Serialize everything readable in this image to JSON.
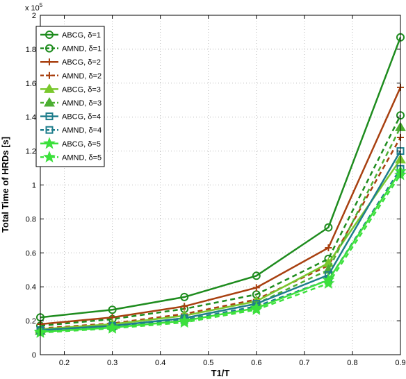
{
  "chart_data": {
    "type": "line",
    "xlabel": "T1/T",
    "ylabel": "Total Time of HRDs [s]",
    "y_multiplier": "x 10",
    "y_multiplier_exponent": "5",
    "xlim": [
      0.15,
      0.9
    ],
    "ylim": [
      0,
      2
    ],
    "x_ticks": [
      "0.2",
      "0.3",
      "0.4",
      "0.5",
      "0.6",
      "0.7",
      "0.8",
      "0.9"
    ],
    "y_ticks": [
      "0",
      "0.2",
      "0.4",
      "0.6",
      "0.8",
      "1",
      "1.2",
      "1.4",
      "1.6",
      "1.8",
      "2"
    ],
    "grid": true,
    "legend_position": "top-left",
    "x": [
      0.15,
      0.3,
      0.45,
      0.6,
      0.75,
      0.9
    ],
    "series": [
      {
        "name": "ABCG, δ=1",
        "values": [
          0.22,
          0.265,
          0.34,
          0.465,
          0.75,
          1.87
        ],
        "color": "#1e8c1e",
        "dash": "solid",
        "marker": "circle"
      },
      {
        "name": "AMND, δ=1",
        "values": [
          0.17,
          0.21,
          0.27,
          0.355,
          0.565,
          1.41
        ],
        "color": "#1e8c1e",
        "dash": "dashed",
        "marker": "circle"
      },
      {
        "name": "ABCG, δ=2",
        "values": [
          0.18,
          0.22,
          0.285,
          0.395,
          0.63,
          1.575
        ],
        "color": "#a84010",
        "dash": "solid",
        "marker": "plus"
      },
      {
        "name": "AMND, δ=2",
        "values": [
          0.155,
          0.185,
          0.24,
          0.325,
          0.525,
          1.28
        ],
        "color": "#a84010",
        "dash": "dashed",
        "marker": "plus"
      },
      {
        "name": "ABCG, δ=3",
        "values": [
          0.15,
          0.18,
          0.23,
          0.315,
          0.54,
          1.15
        ],
        "color": "#7ac82d",
        "dash": "solid",
        "marker": "triangle"
      },
      {
        "name": "AMND, δ=3",
        "values": [
          0.14,
          0.17,
          0.215,
          0.3,
          0.5,
          1.34
        ],
        "color": "#4caf32",
        "dash": "dashed",
        "marker": "triangle"
      },
      {
        "name": "ABCG, δ=4",
        "values": [
          0.145,
          0.17,
          0.215,
          0.3,
          0.47,
          1.2
        ],
        "color": "#1e7d8c",
        "dash": "solid",
        "marker": "square"
      },
      {
        "name": "AMND, δ=4",
        "values": [
          0.14,
          0.165,
          0.205,
          0.285,
          0.44,
          1.095
        ],
        "color": "#1e7d8c",
        "dash": "dashed",
        "marker": "square"
      },
      {
        "name": "ABCG, δ=5",
        "values": [
          0.135,
          0.16,
          0.2,
          0.275,
          0.44,
          1.08
        ],
        "color": "#3ce03c",
        "dash": "solid",
        "marker": "star"
      },
      {
        "name": "AMND, δ=5",
        "values": [
          0.13,
          0.155,
          0.19,
          0.265,
          0.42,
          1.06
        ],
        "color": "#3ce03c",
        "dash": "dashed",
        "marker": "star"
      }
    ]
  }
}
